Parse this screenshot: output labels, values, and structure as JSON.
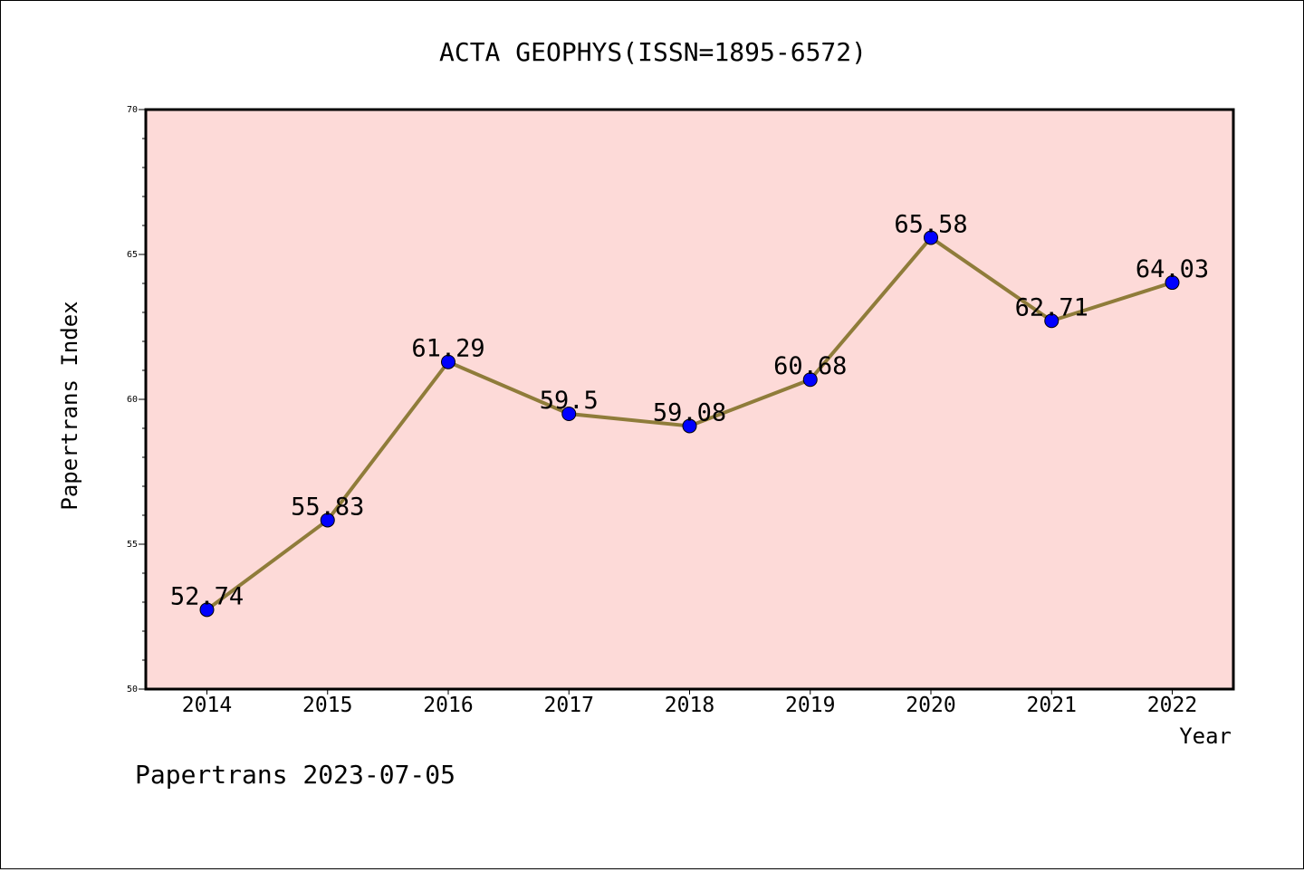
{
  "chart_data": {
    "type": "line",
    "title": "ACTA GEOPHYS(ISSN=1895-6572)",
    "xlabel": "Year",
    "ylabel": "Papertrans Index",
    "categories": [
      "2014",
      "2015",
      "2016",
      "2017",
      "2018",
      "2019",
      "2020",
      "2021",
      "2022"
    ],
    "values": [
      52.74,
      55.83,
      61.29,
      59.5,
      59.08,
      60.68,
      65.58,
      62.71,
      64.03
    ],
    "value_labels": [
      "52.74",
      "55.83",
      "61.29",
      "59.5",
      "59.08",
      "60.68",
      "65.58",
      "62.71",
      "64.03"
    ],
    "ylim": [
      50,
      70
    ],
    "yticks": [
      "50",
      "55",
      "60",
      "65",
      "70"
    ],
    "grid": false,
    "legend": "none",
    "colors": {
      "plot_background": "#fddad8",
      "line": "#8f7c3a",
      "marker": "#0000ff",
      "text": "#000000"
    }
  },
  "footer": {
    "watermark": "Papertrans 2023-07-05"
  }
}
